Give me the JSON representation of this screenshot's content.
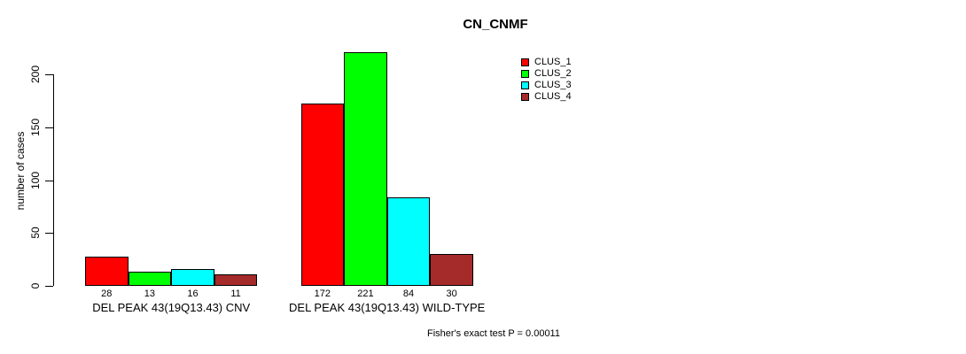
{
  "title": "CN_CNMF",
  "y_axis": {
    "label": "number of cases",
    "tick_labels": [
      "0",
      "50",
      "100",
      "150",
      "200"
    ]
  },
  "footer": "Fisher's exact test P = 0.00011",
  "legend": {
    "items": [
      {
        "label": "CLUS_1",
        "color": "#FF0000"
      },
      {
        "label": "CLUS_2",
        "color": "#00FF00"
      },
      {
        "label": "CLUS_3",
        "color": "#00FFFF"
      },
      {
        "label": "CLUS_4",
        "color": "#A52A2A"
      }
    ]
  },
  "chart_data": {
    "type": "bar",
    "title": "CN_CNMF",
    "ylabel": "number of cases",
    "xlabel": "",
    "ylim": [
      0,
      225
    ],
    "yticks": [
      0,
      50,
      100,
      150,
      200
    ],
    "grid": false,
    "legend_position": "top-right",
    "annotation": "Fisher's exact test P = 0.00011",
    "categories": [
      "DEL PEAK 43(19Q13.43) CNV",
      "DEL PEAK 43(19Q13.43) WILD-TYPE"
    ],
    "series": [
      {
        "name": "CLUS_1",
        "color": "#FF0000",
        "values": [
          28,
          172
        ]
      },
      {
        "name": "CLUS_2",
        "color": "#00FF00",
        "values": [
          13,
          221
        ]
      },
      {
        "name": "CLUS_3",
        "color": "#00FFFF",
        "values": [
          16,
          84
        ]
      },
      {
        "name": "CLUS_4",
        "color": "#A52A2A",
        "values": [
          11,
          30
        ]
      }
    ],
    "bar_value_labels": [
      [
        "28",
        "13",
        "16",
        "11"
      ],
      [
        "172",
        "221",
        "84",
        "30"
      ]
    ]
  }
}
